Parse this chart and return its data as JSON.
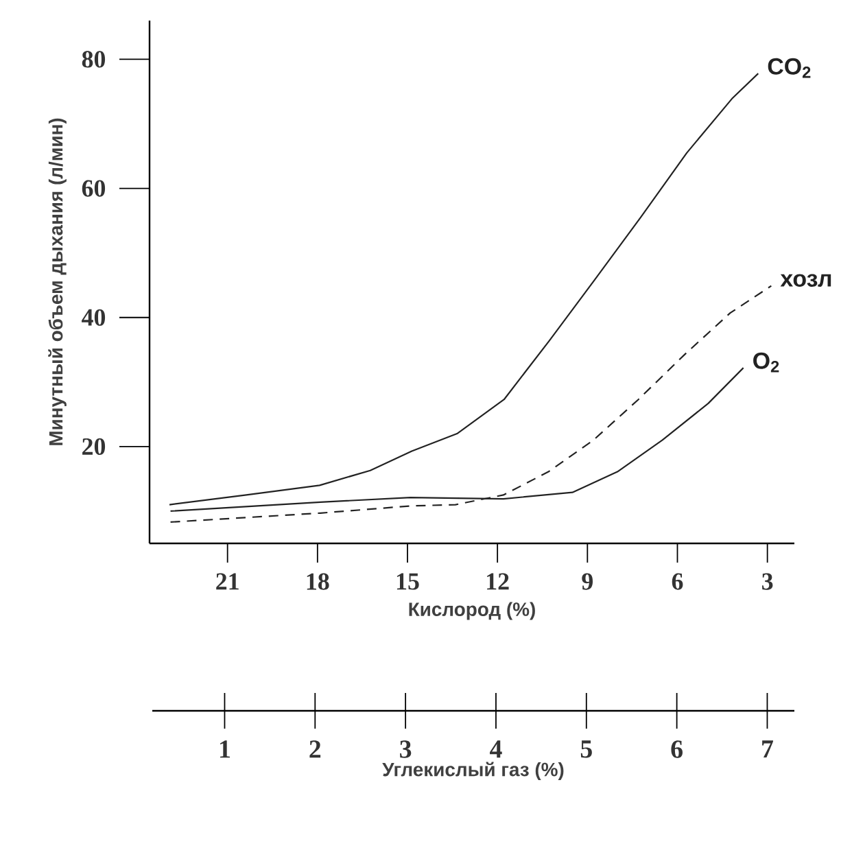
{
  "chart_data": {
    "type": "line",
    "ylabel": "Минутный объем дыхания (л/мин)",
    "xlabel": "Кислород (%)",
    "x2label": "Углекислый газ (%)",
    "xlim": [
      23.6,
      2.1
    ],
    "xticks": [
      21,
      18,
      15,
      12,
      9,
      6,
      3
    ],
    "x2lim": [
      0.2,
      7.3
    ],
    "x2ticks": [
      1,
      2,
      3,
      4,
      5,
      6,
      7
    ],
    "ylim": [
      5,
      86
    ],
    "yticks": [
      20,
      40,
      60,
      80
    ],
    "series": [
      {
        "name": "CO$_{2}$",
        "color": "#222222",
        "axis": "x2",
        "x": [
          0.39,
          1.24,
          2.05,
          2.61,
          3.07,
          3.57,
          4.09,
          4.59,
          5.09,
          5.6,
          6.11,
          6.61,
          6.9
        ],
        "values": [
          11.0,
          12.5,
          14.0,
          16.3,
          19.3,
          22.0,
          27.3,
          36.4,
          45.8,
          55.5,
          65.5,
          73.9,
          77.8
        ]
      },
      {
        "name": "хозл",
        "color": "#222222",
        "line_style": "dashed",
        "x": [
          22.9,
          17.9,
          14.9,
          13.4,
          11.8,
          10.3,
          8.8,
          7.3,
          5.75,
          4.24,
          2.87
        ],
        "values": [
          8.3,
          9.7,
          10.8,
          11.0,
          12.5,
          16.1,
          21.0,
          27.3,
          34.3,
          40.7,
          44.9
        ]
      },
      {
        "name": "O$_{2}$",
        "color": "#222222",
        "x": [
          22.9,
          17.9,
          14.9,
          11.8,
          9.5,
          8.0,
          6.5,
          4.97,
          3.8
        ],
        "values": [
          10.0,
          11.4,
          12.1,
          11.9,
          12.9,
          16.1,
          21.0,
          26.7,
          32.2
        ]
      }
    ]
  }
}
